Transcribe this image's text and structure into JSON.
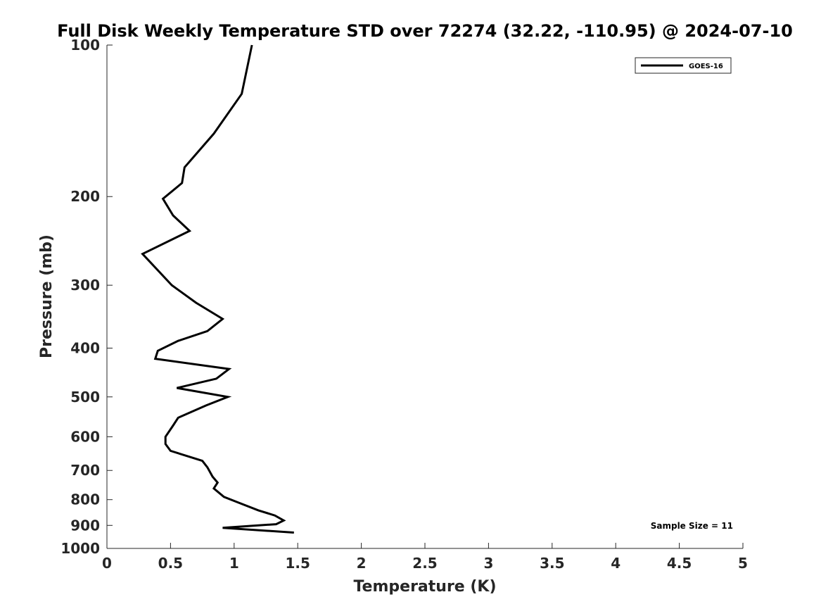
{
  "chart_data": {
    "type": "line",
    "title": "Full Disk Weekly Temperature STD over 72274 (32.22, -110.95) @ 2024-07-10",
    "xlabel": "Temperature (K)",
    "ylabel": "Pressure (mb)",
    "xlim": [
      0,
      5
    ],
    "ylim": [
      100,
      1000
    ],
    "y_scale": "log",
    "y_reversed": true,
    "x_ticks": [
      0,
      0.5,
      1,
      1.5,
      2,
      2.5,
      3,
      3.5,
      4,
      4.5,
      5
    ],
    "x_tick_labels": [
      "0",
      "0.5",
      "1",
      "1.5",
      "2",
      "2.5",
      "3",
      "3.5",
      "4",
      "4.5",
      "5"
    ],
    "y_ticks": [
      100,
      200,
      300,
      400,
      500,
      600,
      700,
      800,
      900,
      1000
    ],
    "y_tick_labels": [
      "100",
      "200",
      "300",
      "400",
      "500",
      "600",
      "700",
      "800",
      "900",
      "1000"
    ],
    "grid": false,
    "legend_position": "top-right",
    "series": [
      {
        "name": "GOES-16",
        "color": "#000000",
        "x": [
          1.14,
          1.06,
          0.84,
          0.61,
          0.59,
          0.44,
          0.52,
          0.65,
          0.28,
          0.51,
          0.7,
          0.91,
          0.79,
          0.56,
          0.4,
          0.38,
          0.96,
          0.86,
          0.55,
          0.95,
          0.78,
          0.56,
          0.52,
          0.46,
          0.46,
          0.5,
          0.75,
          0.79,
          0.83,
          0.87,
          0.84,
          0.92,
          1.03,
          1.19,
          1.32,
          1.39,
          1.33,
          0.91,
          1.47
        ],
        "y": [
          100,
          125,
          150,
          175,
          188,
          202,
          218,
          234,
          260,
          300,
          325,
          350,
          370,
          387,
          405,
          420,
          440,
          460,
          480,
          500,
          520,
          550,
          570,
          600,
          620,
          640,
          670,
          690,
          720,
          740,
          760,
          790,
          810,
          840,
          860,
          880,
          895,
          910,
          930
        ]
      }
    ],
    "annotations": [
      "Sample Size = 11"
    ]
  }
}
